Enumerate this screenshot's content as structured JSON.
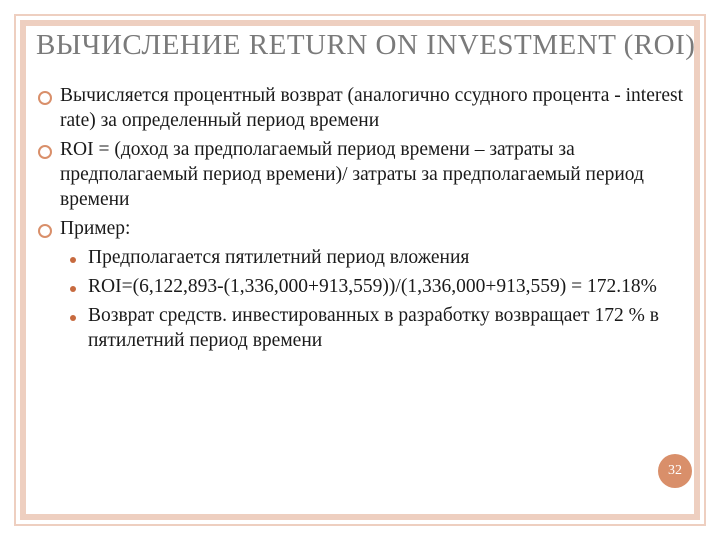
{
  "colors": {
    "frame": "#eecfc0",
    "title": "#7a7a7a",
    "body_text": "#1a1a1a",
    "ring_bullet": "#d98f6a",
    "dot_bullet": "#c76a3f",
    "badge_bg": "#d98f6a",
    "badge_text": "#ffffff",
    "background": "#ffffff"
  },
  "typography": {
    "title_fontsize": 29,
    "body_fontsize": 19.5,
    "badge_fontsize": 14,
    "family": "Georgia, serif"
  },
  "title": "ВЫЧИСЛЕНИЕ RETURN ON INVESTMENT (ROI)",
  "bullets": [
    {
      "text": "Вычисляется процентный возврат (аналогично ссудного процента - interest rate) за определенный период времени"
    },
    {
      "text": "ROI = (доход за предполагаемый период времени – затраты за предполагаемый период времени)/ затраты за предполагаемый период времени"
    },
    {
      "text": "Пример:"
    }
  ],
  "sub_bullets": [
    {
      "text": "Предполагается пятилетний период вложения"
    },
    {
      "text": "ROI=(6,122,893-(1,336,000+913,559))/(1,336,000+913,559) = 172.18%"
    },
    {
      "text": "Возврат средств. инвестированных в разработку возвращает 172 % в пятилетний период времени"
    }
  ],
  "page_number": "32"
}
